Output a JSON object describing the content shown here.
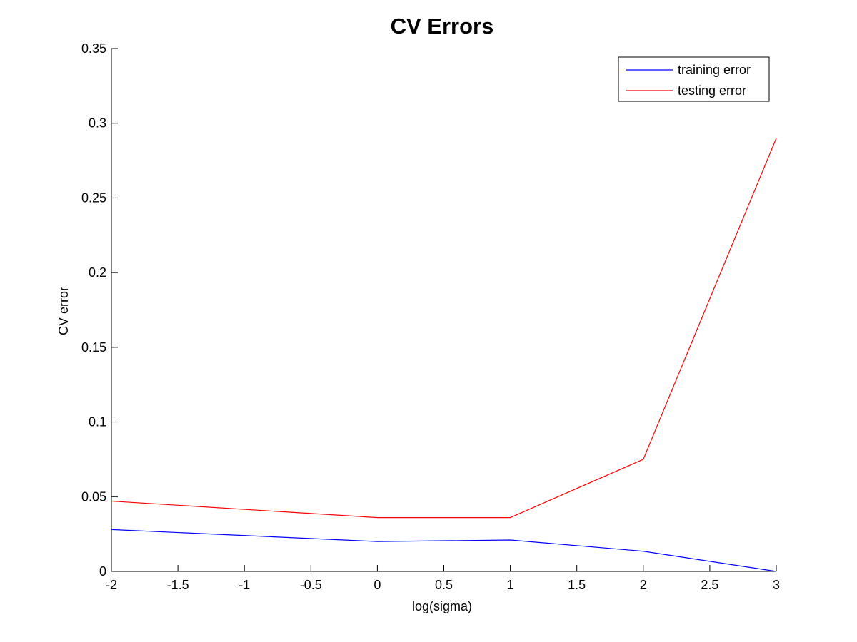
{
  "chart_data": {
    "type": "line",
    "title": "CV Errors",
    "xlabel": "log(sigma)",
    "ylabel": "CV error",
    "xlim": [
      -2,
      3
    ],
    "ylim": [
      0,
      0.35
    ],
    "x_ticks": [
      -2,
      -1.5,
      -1,
      -0.5,
      0,
      0.5,
      1,
      1.5,
      2,
      2.5,
      3
    ],
    "x_tick_labels": [
      "-2",
      "-1.5",
      "-1",
      "-0.5",
      "0",
      "0.5",
      "1",
      "1.5",
      "2",
      "2.5",
      "3"
    ],
    "y_ticks": [
      0,
      0.05,
      0.1,
      0.15,
      0.2,
      0.25,
      0.3,
      0.35
    ],
    "y_tick_labels": [
      "0",
      "0.05",
      "0.1",
      "0.15",
      "0.2",
      "0.25",
      "0.3",
      "0.35"
    ],
    "grid": false,
    "legend_position": "top-right",
    "x": [
      -2,
      0,
      1,
      2,
      3
    ],
    "series": [
      {
        "name": "training error",
        "color": "#0000ff",
        "values": [
          0.028,
          0.02,
          0.021,
          0.0135,
          0.0
        ]
      },
      {
        "name": "testing error",
        "color": "#ff0000",
        "values": [
          0.047,
          0.036,
          0.036,
          0.075,
          0.29
        ]
      }
    ]
  }
}
